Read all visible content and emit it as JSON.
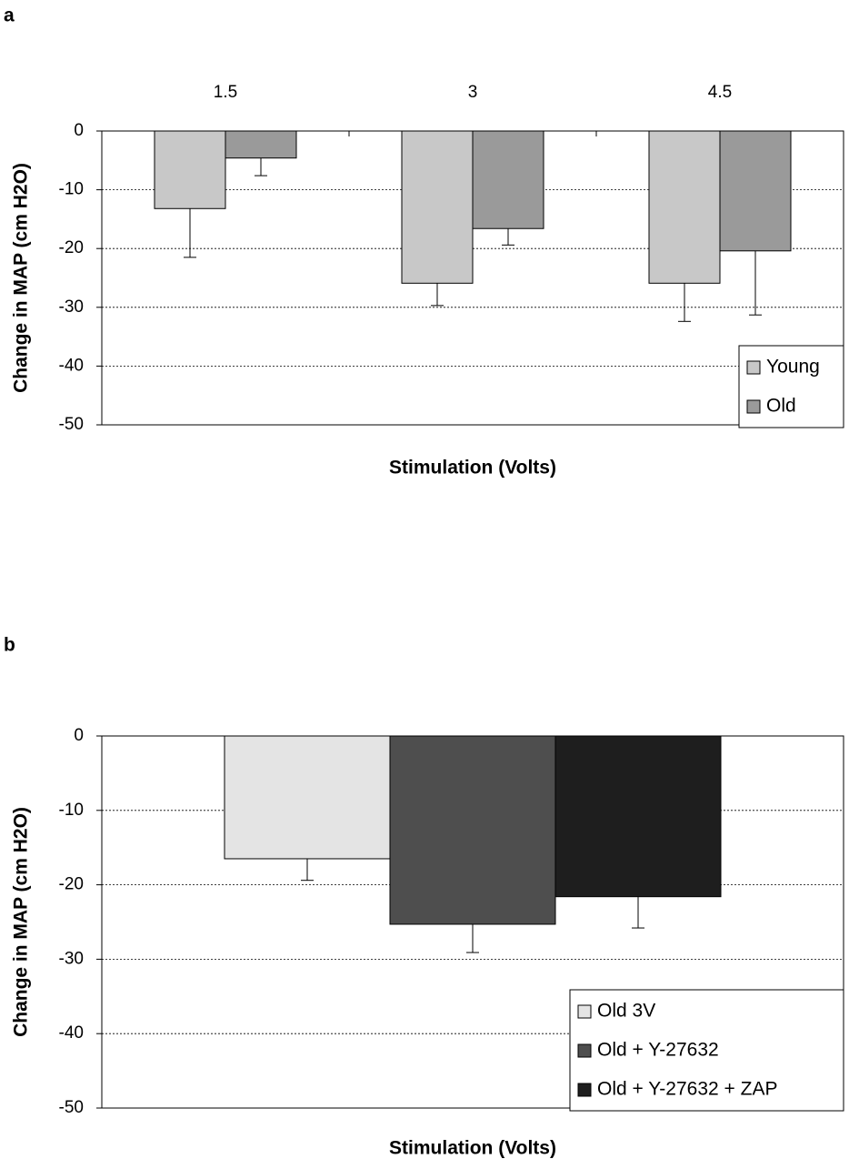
{
  "chart_data": [
    {
      "type": "bar",
      "panel_label": "a",
      "x_label": "Stimulation (Volts)",
      "y_label": "Change in MAP (cm H2O)",
      "categories": [
        "1.5",
        "3",
        "4.5"
      ],
      "series": [
        {
          "name": "Young",
          "color": "#c8c8c8",
          "values": [
            -13.2,
            -25.9,
            -25.9
          ],
          "errors": [
            8.3,
            3.8,
            6.5
          ]
        },
        {
          "name": "Old",
          "color": "#9a9a9a",
          "values": [
            -4.6,
            -16.6,
            -20.4
          ],
          "errors": [
            3,
            2.8,
            10.9
          ]
        }
      ],
      "ylim": [
        -50,
        0
      ],
      "yticks": [
        0,
        -10,
        -20,
        -30,
        -40,
        -50
      ],
      "grid": true,
      "legend": "lower right"
    },
    {
      "type": "bar",
      "panel_label": "b",
      "x_label": "Stimulation (Volts)",
      "y_label": "Change in MAP (cm H2O)",
      "categories": [
        null
      ],
      "series": [
        {
          "name": "Old 3V",
          "color": "#e4e4e4",
          "values": [
            -16.5
          ],
          "errors": [
            2.9
          ]
        },
        {
          "name": "Old + Y-27632",
          "color": "#4e4e4e",
          "values": [
            -25.3
          ],
          "errors": [
            3.8
          ]
        },
        {
          "name": "Old + Y-27632 + ZAP",
          "color": "#1e1e1e",
          "values": [
            -21.6
          ],
          "errors": [
            4.2
          ]
        }
      ],
      "ylim": [
        -50,
        0
      ],
      "yticks": [
        0,
        -10,
        -20,
        -30,
        -40,
        -50
      ],
      "grid": true,
      "legend": "lower right"
    }
  ]
}
